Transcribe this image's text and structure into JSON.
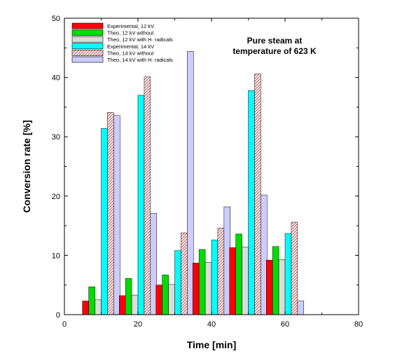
{
  "chart_data": {
    "type": "bar",
    "title": "",
    "annotation": [
      "Pure steam at",
      "temperature of 623 K"
    ],
    "xlabel": "Time [min]",
    "ylabel": "Conversion rate [%]",
    "xlim": [
      0,
      80
    ],
    "ylim": [
      0,
      50
    ],
    "xticks": [
      "0",
      "20",
      "40",
      "60",
      "80"
    ],
    "yticks": [
      "0",
      "10",
      "20",
      "30",
      "40",
      "50"
    ],
    "x": [
      10,
      20,
      30,
      40,
      50,
      60
    ],
    "bar_width": 1.7,
    "legend_position": "top-left",
    "series": [
      {
        "name": "Experimental, 12 kV",
        "color": "#ff0000",
        "pattern": "solid",
        "values": [
          2.3,
          3.2,
          5.0,
          8.7,
          11.3,
          9.2
        ]
      },
      {
        "name": "Theo, 12 kV without",
        "color": "#00dd00",
        "pattern": "solid",
        "values": [
          4.7,
          6.1,
          6.7,
          11.0,
          13.6,
          11.5
        ]
      },
      {
        "name": "Theo, 12 kV with H· radicals",
        "color": "#dcdcdc",
        "pattern": "solid",
        "values": [
          2.5,
          3.3,
          5.1,
          8.8,
          11.4,
          9.3
        ]
      },
      {
        "name": "Experimental, 14 kV",
        "color": "#00ffff",
        "pattern": "solid",
        "values": [
          31.4,
          37.0,
          10.8,
          12.6,
          37.8,
          13.7
        ]
      },
      {
        "name": "Theo, 14 kV without",
        "color": "#c0392b",
        "pattern": "hatch",
        "values": [
          34.1,
          40.1,
          13.8,
          14.6,
          40.6,
          15.6
        ]
      },
      {
        "name": "Theo, 14 kV with H· radicals",
        "color": "#ccccff",
        "pattern": "solid",
        "values": [
          33.6,
          17.1,
          44.4,
          18.2,
          20.2,
          2.3
        ]
      }
    ]
  }
}
